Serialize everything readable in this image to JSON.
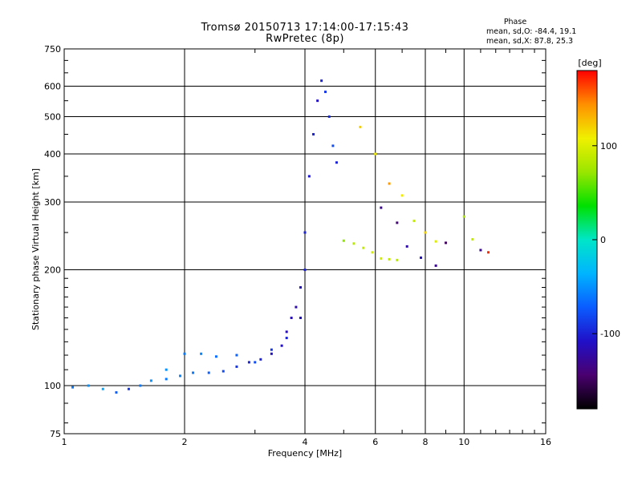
{
  "header": {
    "title_line1": "Tromsø 20150713 17:14:00-17:15:43",
    "title_line2": "RwPretec (8p)",
    "phase_title": "Phase",
    "phase_o": "mean, sd,O: -84.4, 19.1",
    "phase_x": "mean, sd,X: 87.8, 25.3"
  },
  "colorbar": {
    "unit_label": "[deg]",
    "ticks": [
      {
        "label": "100",
        "value": 100
      },
      {
        "label": "0",
        "value": 0
      },
      {
        "label": "-100",
        "value": -100
      }
    ],
    "range": [
      -180,
      180
    ],
    "colors": [
      "#000000",
      "#4a006f",
      "#2010c8",
      "#0a5cff",
      "#00b4ff",
      "#00e6c8",
      "#00e000",
      "#9ae600",
      "#f0f000",
      "#ff9000",
      "#ff0000"
    ]
  },
  "chart_data": {
    "type": "scatter",
    "title": "Tromsø 20150713 17:14:00-17:15:43",
    "subtitle": "RwPretec (8p)",
    "xlabel": "Frequency [MHz]",
    "ylabel": "Stationary phase Virtual Height [km]",
    "xscale": "log",
    "yscale": "log",
    "xlim": [
      1,
      16
    ],
    "ylim": [
      75,
      750
    ],
    "grid": true,
    "xticks": [
      1,
      2,
      4,
      6,
      8,
      10,
      16
    ],
    "xticklabels": [
      "1",
      "2",
      "4",
      "6",
      "8",
      "10",
      "16"
    ],
    "yticks": [
      75,
      100,
      200,
      300,
      400,
      500,
      600,
      750
    ],
    "yticklabels": [
      "75",
      "100",
      "200",
      "300",
      "400",
      "500",
      "600",
      "750"
    ],
    "color_variable": "phase [deg]",
    "series": [
      {
        "points": [
          [
            1.05,
            99,
            -60
          ],
          [
            1.15,
            100,
            -50
          ],
          [
            1.25,
            98,
            -40
          ],
          [
            1.35,
            96,
            -70
          ],
          [
            1.45,
            98,
            -90
          ],
          [
            1.55,
            100,
            -60
          ],
          [
            1.65,
            103,
            -50
          ],
          [
            1.8,
            104,
            -60
          ],
          [
            1.95,
            106,
            -55
          ],
          [
            2.1,
            108,
            -60
          ],
          [
            2.3,
            108,
            -70
          ],
          [
            2.5,
            109,
            -80
          ],
          [
            2.7,
            112,
            -90
          ],
          [
            2.9,
            115,
            -100
          ],
          [
            3.1,
            117,
            -100
          ],
          [
            3.3,
            121,
            -110
          ],
          [
            3.5,
            127,
            -110
          ],
          [
            3.6,
            138,
            -115
          ],
          [
            3.7,
            150,
            -115
          ],
          [
            3.8,
            160,
            -120
          ],
          [
            3.9,
            180,
            -110
          ],
          [
            4.0,
            200,
            -100
          ]
        ]
      },
      {
        "points": [
          [
            1.8,
            110,
            -50
          ],
          [
            2.0,
            121,
            -60
          ],
          [
            2.2,
            121,
            -55
          ],
          [
            2.4,
            119,
            -65
          ],
          [
            2.7,
            120,
            -70
          ],
          [
            3.0,
            115,
            -80
          ],
          [
            3.3,
            124,
            -90
          ],
          [
            3.6,
            133,
            -100
          ],
          [
            3.9,
            150,
            -110
          ]
        ]
      },
      {
        "points": [
          [
            4.0,
            250,
            -100
          ],
          [
            4.1,
            350,
            -105
          ],
          [
            4.2,
            450,
            -100
          ],
          [
            4.3,
            550,
            -110
          ],
          [
            4.4,
            620,
            -100
          ],
          [
            4.5,
            580,
            -90
          ],
          [
            4.6,
            500,
            -95
          ],
          [
            4.7,
            420,
            -80
          ],
          [
            4.8,
            380,
            -100
          ]
        ]
      },
      {
        "points": [
          [
            5.0,
            238,
            70
          ],
          [
            5.3,
            234,
            85
          ],
          [
            5.6,
            228,
            90
          ],
          [
            5.9,
            222,
            95
          ],
          [
            6.2,
            214,
            95
          ],
          [
            6.5,
            213,
            90
          ],
          [
            6.8,
            212,
            85
          ]
        ]
      },
      {
        "points": [
          [
            5.5,
            470,
            120
          ],
          [
            6.0,
            400,
            110
          ],
          [
            6.5,
            335,
            140
          ],
          [
            7.0,
            312,
            110
          ],
          [
            7.5,
            268,
            90
          ],
          [
            8.0,
            250,
            120
          ],
          [
            8.5,
            237,
            100
          ]
        ]
      },
      {
        "points": [
          [
            6.2,
            290,
            -130
          ],
          [
            6.8,
            265,
            -140
          ],
          [
            7.2,
            230,
            -120
          ],
          [
            7.8,
            215,
            -110
          ],
          [
            8.5,
            205,
            -130
          ],
          [
            9.0,
            235,
            -150
          ],
          [
            10.0,
            275,
            80
          ],
          [
            10.5,
            240,
            90
          ],
          [
            11.0,
            225,
            -130
          ],
          [
            11.5,
            222,
            170
          ]
        ]
      }
    ]
  }
}
